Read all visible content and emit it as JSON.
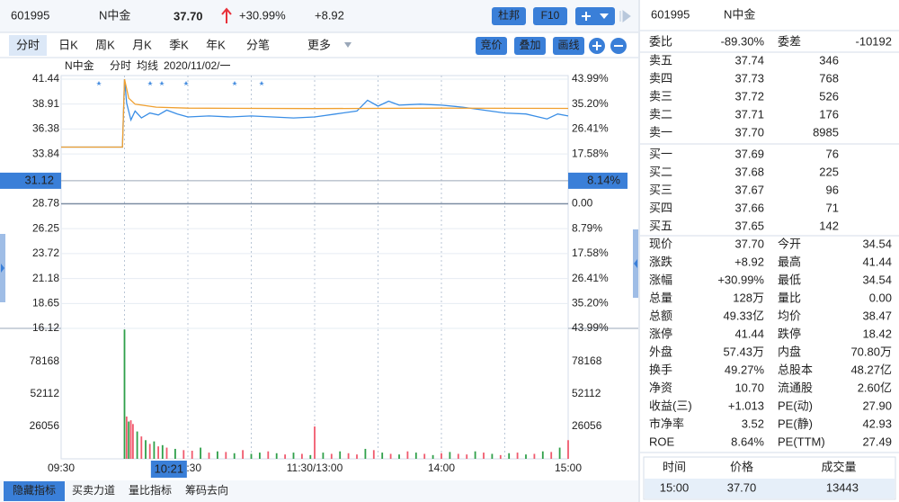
{
  "header": {
    "code": "601995",
    "name": "N中金",
    "price": "37.70",
    "change_pct": "+30.99%",
    "change": "+8.92",
    "buttons": [
      "杜邦",
      "F10"
    ]
  },
  "tabs": [
    "分时",
    "日K",
    "周K",
    "月K",
    "季K",
    "年K",
    "分笔",
    "更多"
  ],
  "tools": [
    "竞价",
    "叠加",
    "画线"
  ],
  "chart_data": [
    {
      "type": "line",
      "title": "N中金",
      "date": "2020/11/02/一",
      "xlim": [
        0,
        240
      ],
      "xgrid": [
        30,
        60,
        90,
        120,
        150,
        180,
        210
      ],
      "ylim": [
        16.12,
        41.44
      ],
      "yticks": [
        41.44,
        38.91,
        36.38,
        33.84,
        28.78,
        26.25,
        23.72,
        21.18,
        18.65,
        16.12
      ],
      "y2lim": [
        -43.99,
        43.99
      ],
      "y2ticks": [
        {
          "value": 43.99,
          "label": "43.99%"
        },
        {
          "value": 35.2,
          "label": "35.20%"
        },
        {
          "value": 26.41,
          "label": "26.41%"
        },
        {
          "value": 17.58,
          "label": "17.58%"
        },
        {
          "value": 0,
          "label": "0.00"
        },
        {
          "value": -8.79,
          "label": "8.79%"
        },
        {
          "value": -17.58,
          "label": "17.58%"
        },
        {
          "value": -26.41,
          "label": "26.41%"
        },
        {
          "value": -35.2,
          "label": "35.20%"
        },
        {
          "value": -43.99,
          "label": "43.99%"
        }
      ],
      "up_color": "#e8313a",
      "down_color": "#1f9a3a",
      "cursor": {
        "y": 31.12,
        "y2": {
          "value": 8.14,
          "label": "8.14%"
        },
        "x": {
          "value": 51,
          "label": "10:21"
        }
      },
      "series": [
        {
          "name": "分时",
          "color": "#3a8ee6",
          "x": [
            0,
            29,
            30,
            31,
            33,
            35,
            38,
            42,
            46,
            50,
            55,
            60,
            70,
            80,
            90,
            100,
            110,
            120,
            130,
            140,
            145,
            150,
            155,
            160,
            170,
            180,
            190,
            200,
            210,
            220,
            230,
            235,
            240
          ],
          "values": [
            34.54,
            34.54,
            41.44,
            39.0,
            37.3,
            38.2,
            37.5,
            38.0,
            37.8,
            38.3,
            37.9,
            37.6,
            37.7,
            37.6,
            37.7,
            37.6,
            37.5,
            37.6,
            37.9,
            38.2,
            39.3,
            38.7,
            39.2,
            38.8,
            38.9,
            38.8,
            38.6,
            38.3,
            38.0,
            37.9,
            37.4,
            37.9,
            37.7
          ]
        },
        {
          "name": "均线",
          "color": "#f0a030",
          "x": [
            0,
            29,
            30,
            32,
            35,
            45,
            60,
            120,
            180,
            240
          ],
          "values": [
            34.54,
            34.54,
            41.44,
            39.5,
            38.9,
            38.6,
            38.5,
            38.45,
            38.5,
            38.47
          ]
        }
      ]
    },
    {
      "type": "bar",
      "xlim": [
        0,
        240
      ],
      "xgrid": [
        30,
        60,
        90,
        120,
        150,
        180,
        210
      ],
      "xticks": [
        {
          "value": 0,
          "label": "09:30"
        },
        {
          "value": 60,
          "label": "10:30"
        },
        {
          "value": 120,
          "label": "11:30/13:00"
        },
        {
          "value": 180,
          "label": "14:00"
        },
        {
          "value": 240,
          "label": "15:00"
        }
      ],
      "ylim": [
        0,
        104224
      ],
      "yticks": [
        78168,
        52112,
        26056
      ],
      "up_color": "#f05a6e",
      "down_color": "#2fa04a",
      "x": [
        30,
        31,
        32,
        33,
        34,
        36,
        38,
        40,
        42,
        44,
        46,
        48,
        50,
        54,
        58,
        62,
        66,
        70,
        74,
        78,
        82,
        86,
        90,
        94,
        98,
        102,
        106,
        110,
        114,
        118,
        120,
        124,
        128,
        132,
        136,
        140,
        144,
        148,
        152,
        156,
        160,
        164,
        168,
        172,
        176,
        180,
        184,
        188,
        192,
        196,
        200,
        204,
        208,
        212,
        216,
        220,
        224,
        228,
        232,
        236,
        240
      ],
      "values": [
        104000,
        34000,
        30000,
        31000,
        28000,
        22000,
        18000,
        15000,
        12000,
        14000,
        10000,
        11000,
        9000,
        8000,
        7000,
        6500,
        9000,
        5000,
        6000,
        5500,
        4500,
        7000,
        4000,
        5000,
        6000,
        4500,
        3500,
        5000,
        4000,
        3000,
        26000,
        5000,
        4000,
        6000,
        4500,
        3500,
        8000,
        7000,
        5000,
        4000,
        3500,
        6000,
        5000,
        4000,
        3000,
        4500,
        5500,
        4000,
        3500,
        6000,
        5000,
        4000,
        3000,
        4500,
        5000,
        3500,
        4000,
        6000,
        5500,
        9000,
        15000
      ],
      "directions": [
        "down",
        "up",
        "down",
        "up",
        "up",
        "down",
        "up",
        "down",
        "up",
        "down",
        "up",
        "down",
        "up",
        "down",
        "up",
        "up",
        "down",
        "up",
        "down",
        "up",
        "down",
        "up",
        "down",
        "down",
        "up",
        "down",
        "up",
        "down",
        "up",
        "down",
        "up",
        "down",
        "up",
        "down",
        "up",
        "up",
        "down",
        "up",
        "down",
        "up",
        "down",
        "up",
        "down",
        "up",
        "down",
        "up",
        "down",
        "up",
        "up",
        "down",
        "up",
        "down",
        "up",
        "down",
        "up",
        "down",
        "up",
        "down",
        "up",
        "down",
        "up"
      ]
    }
  ],
  "bottom_tabs": [
    "隐藏指标",
    "买卖力道",
    "量比指标",
    "筹码去向"
  ],
  "quote": {
    "code": "601995",
    "name": "N中金",
    "ratio": [
      {
        "label": "委比",
        "value": "-89.30%",
        "color": "#1f9a3a"
      },
      {
        "label": "委差",
        "value": "-10192",
        "color": "#1f9a3a"
      }
    ],
    "asks": [
      {
        "label": "卖五",
        "price": "37.74",
        "volume": "346"
      },
      {
        "label": "卖四",
        "price": "37.73",
        "volume": "768"
      },
      {
        "label": "卖三",
        "price": "37.72",
        "volume": "526"
      },
      {
        "label": "卖二",
        "price": "37.71",
        "volume": "176"
      },
      {
        "label": "卖一",
        "price": "37.70",
        "volume": "8985"
      }
    ],
    "bids": [
      {
        "label": "买一",
        "price": "37.69",
        "volume": "76"
      },
      {
        "label": "买二",
        "price": "37.68",
        "volume": "225"
      },
      {
        "label": "买三",
        "price": "37.67",
        "volume": "96"
      },
      {
        "label": "买四",
        "price": "37.66",
        "volume": "71"
      },
      {
        "label": "买五",
        "price": "37.65",
        "volume": "142"
      }
    ],
    "price_color": "#e8313a",
    "stats": [
      {
        "label": "现价",
        "value": "37.70",
        "color": "#e8313a"
      },
      {
        "label": "今开",
        "value": "34.54",
        "color": "#e8313a"
      },
      {
        "label": "涨跌",
        "value": "+8.92",
        "color": "#e8313a"
      },
      {
        "label": "最高",
        "value": "41.44",
        "color": "#e8313a"
      },
      {
        "label": "涨幅",
        "value": "+30.99%",
        "color": "#e8313a"
      },
      {
        "label": "最低",
        "value": "34.54",
        "color": "#e8313a"
      },
      {
        "label": "总量",
        "value": "128万",
        "color": "#222222"
      },
      {
        "label": "量比",
        "value": "0.00",
        "color": "#222222"
      },
      {
        "label": "总额",
        "value": "49.33亿",
        "color": "#222222"
      },
      {
        "label": "均价",
        "value": "38.47",
        "color": "#e8313a"
      },
      {
        "label": "涨停",
        "value": "41.44",
        "color": "#e8313a"
      },
      {
        "label": "跌停",
        "value": "18.42",
        "color": "#1f9a3a"
      },
      {
        "label": "外盘",
        "value": "57.43万",
        "color": "#e8313a"
      },
      {
        "label": "内盘",
        "value": "70.80万",
        "color": "#1f9a3a"
      },
      {
        "label": "换手",
        "value": "49.27%",
        "color": "#222222"
      },
      {
        "label": "总股本",
        "value": "48.27亿",
        "color": "#222222"
      },
      {
        "label": "净资",
        "value": "10.70",
        "color": "#222222"
      },
      {
        "label": "流通股",
        "value": "2.60亿",
        "color": "#222222"
      },
      {
        "label": "收益(三)",
        "value": "+1.013",
        "color": "#e8313a"
      },
      {
        "label": "PE(动)",
        "value": "27.90",
        "color": "#222222"
      },
      {
        "label": "市净率",
        "value": "3.52",
        "color": "#222222"
      },
      {
        "label": "PE(静)",
        "value": "42.93",
        "color": "#222222"
      },
      {
        "label": "ROE",
        "value": "8.64%",
        "color": "#222222"
      },
      {
        "label": "PE(TTM)",
        "value": "27.49",
        "color": "#222222"
      }
    ],
    "trades": {
      "columns": [
        "时间",
        "价格",
        "成交量"
      ],
      "rows": [
        [
          "15:00",
          "37.70",
          "13443"
        ]
      ]
    }
  }
}
